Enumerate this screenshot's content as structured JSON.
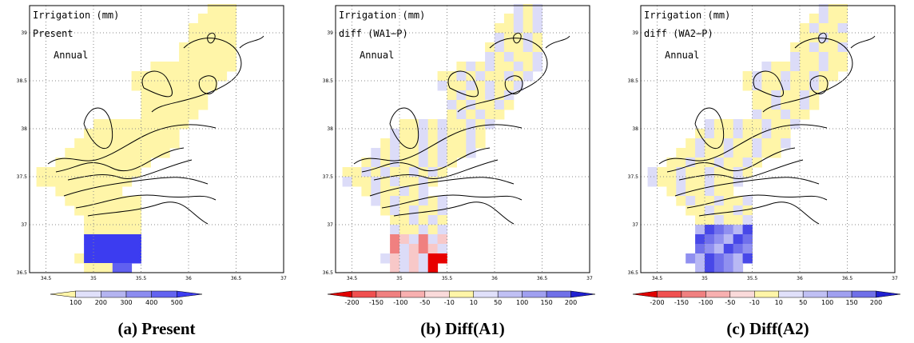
{
  "panels": [
    {
      "title": "Irrigation (mm)",
      "subtitle": "Present",
      "period": "Annual",
      "caption": "(a) Present",
      "colorbar": [
        100,
        200,
        300,
        400,
        500
      ]
    },
    {
      "title": "Irrigation (mm)",
      "subtitle": "diff (WA1−P)",
      "period": "Annual",
      "caption": "(b) Diff(A1)",
      "colorbar": [
        -200,
        -150,
        -100,
        -50,
        -10,
        10,
        50,
        100,
        150,
        200
      ]
    },
    {
      "title": "Irrigation (mm)",
      "subtitle": "diff (WA2−P)",
      "period": "Annual",
      "caption": "(c) Diff(A2)",
      "colorbar": [
        -200,
        -150,
        -100,
        -50,
        -10,
        10,
        50,
        100,
        150,
        200
      ]
    }
  ],
  "xticks": [
    34.5,
    35,
    35.5,
    36,
    36.5,
    37
  ],
  "yticks": [
    36.5,
    37,
    37.5,
    38,
    38.5,
    39
  ]
}
